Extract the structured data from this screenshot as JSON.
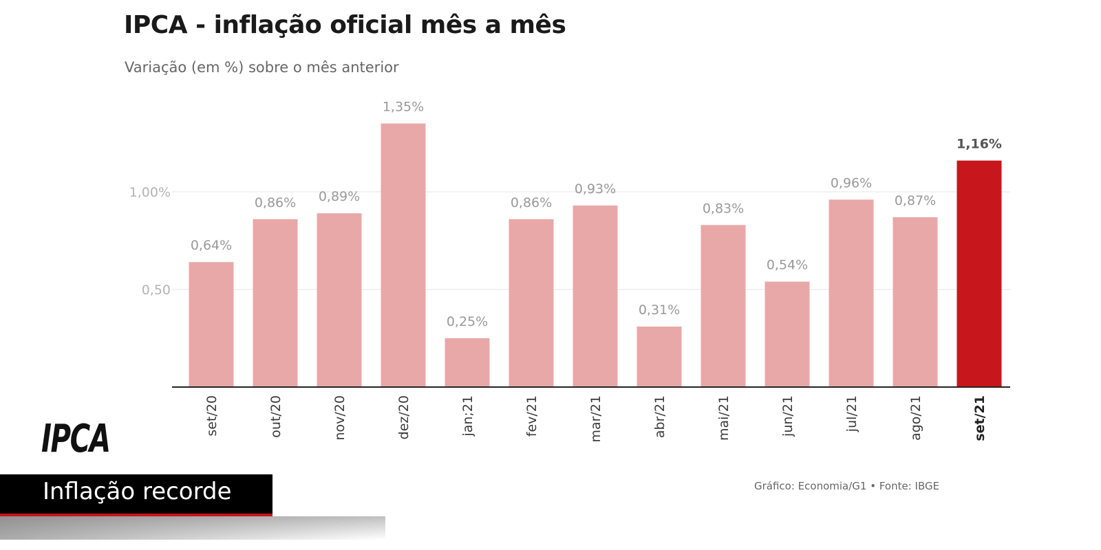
{
  "header": {
    "title": "IPCA - inflação oficial mês a mês",
    "subtitle": "Variação (em %) sobre o mês anterior"
  },
  "source": "Gráfico: Economia/G1 • Fonte: IBGE",
  "overlay": {
    "logo_text": "IPCA",
    "banner_text": "Inflação recorde",
    "banner_accent_color": "#c8141c"
  },
  "chart_data": {
    "type": "bar",
    "title": "IPCA - inflação oficial mês a mês",
    "subtitle": "Variação (em %) sobre o mês anterior",
    "xlabel": "",
    "ylabel": "",
    "ylim": [
      0,
      1.5
    ],
    "yticks": [
      0.5,
      1.0
    ],
    "ytick_labels": [
      "0,50",
      "1,00%"
    ],
    "grid": true,
    "categories": [
      "set/20",
      "out/20",
      "nov/20",
      "dez/20",
      "jan;21",
      "fev/21",
      "mar/21",
      "abr/21",
      "mai/21",
      "jun/21",
      "jul/21",
      "ago/21",
      "set/21"
    ],
    "values": [
      0.64,
      0.86,
      0.89,
      1.35,
      0.25,
      0.86,
      0.93,
      0.31,
      0.83,
      0.54,
      0.96,
      0.87,
      1.16
    ],
    "value_labels": [
      "0,64%",
      "0,86%",
      "0,89%",
      "1,35%",
      "0,25%",
      "0,86%",
      "0,93%",
      "0,31%",
      "0,83%",
      "0,54%",
      "0,96%",
      "0,87%",
      "1,16%"
    ],
    "highlight_index": 12,
    "bar_color": "#e8a8a8",
    "highlight_color": "#c8161d"
  }
}
